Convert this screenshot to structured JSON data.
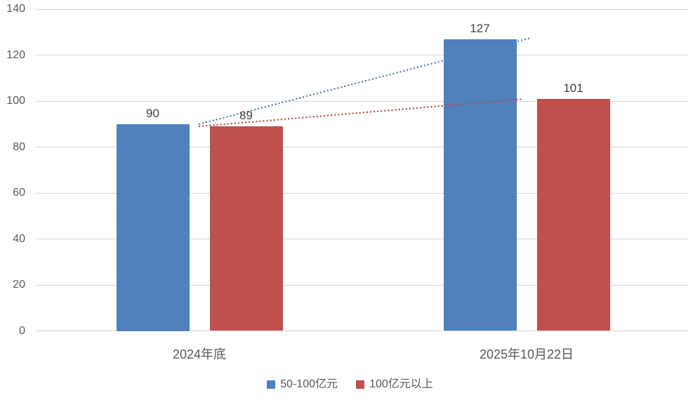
{
  "chart_data": {
    "type": "bar",
    "title": "",
    "categories": [
      "2024年底",
      "2025年10月22日"
    ],
    "series": [
      {
        "name": "50-100亿元",
        "color": "#4F81BD",
        "values": [
          90,
          127
        ],
        "labels": [
          "90",
          "127"
        ]
      },
      {
        "name": "100亿元以上",
        "color": "#C0504D",
        "values": [
          89,
          101
        ],
        "labels": [
          "89",
          "101"
        ]
      }
    ],
    "trendlines": [
      {
        "series": "50-100亿元",
        "type": "linear",
        "style": "dotted",
        "color": "#4F81BD",
        "layer": "behind-bars"
      },
      {
        "series": "100亿元以上",
        "type": "linear",
        "style": "dotted",
        "color": "#BE4B48",
        "layer": "front-of-bars"
      }
    ],
    "y_axis": {
      "min": 0,
      "max": 140,
      "step": 20,
      "tick_labels": [
        "0",
        "20",
        "40",
        "60",
        "80",
        "100",
        "120",
        "140"
      ]
    },
    "x_axis": {
      "labels": [
        "2024年底",
        "2025年10月22日"
      ]
    },
    "grid": true,
    "legend_position": "bottom"
  },
  "colors": {
    "background": "#FFFFFF",
    "gridline": "#D6D6D6",
    "axis_text": "#595959",
    "data_label_text": "#404040",
    "series_blue": "#4F81BD",
    "series_red": "#C0504D"
  }
}
